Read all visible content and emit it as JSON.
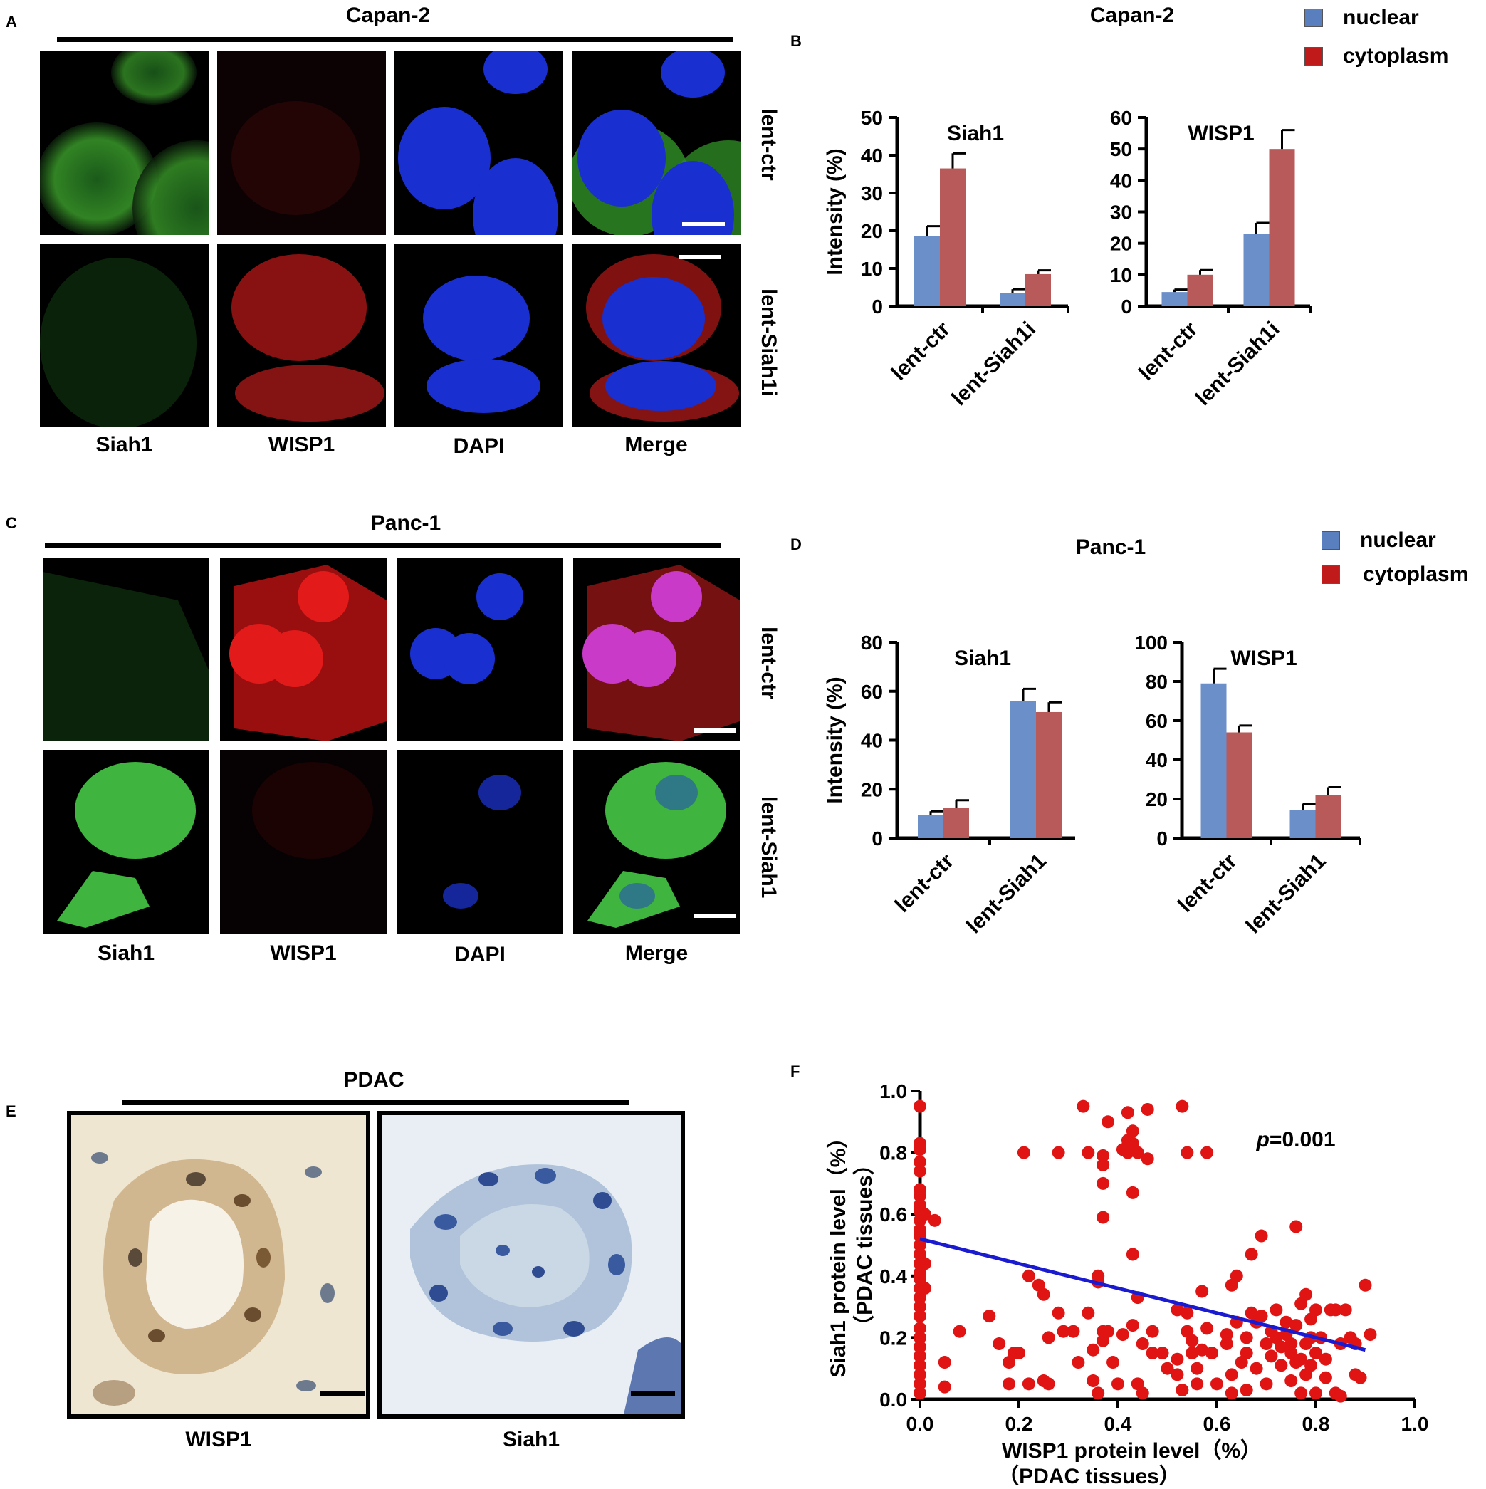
{
  "panels": {
    "A": {
      "letter": "A",
      "title": "Capan-2",
      "columns": [
        "Siah1",
        "WISP1",
        "DAPI",
        "Merge"
      ],
      "rows": [
        "lent-ctr",
        "lent-Siah1i"
      ]
    },
    "B": {
      "letter": "B",
      "title": "Capan-2"
    },
    "C": {
      "letter": "C",
      "title": "Panc-1",
      "columns": [
        "Siah1",
        "WISP1",
        "DAPI",
        "Merge"
      ],
      "rows": [
        "lent-ctr",
        "lent-Siah1"
      ]
    },
    "D": {
      "letter": "D",
      "title": "Panc-1"
    },
    "E": {
      "letter": "E",
      "title": "PDAC",
      "labels": [
        "WISP1",
        "Siah1"
      ]
    },
    "F": {
      "letter": "F"
    }
  },
  "legend": {
    "items": [
      {
        "label": "nuclear",
        "color": "#5a7fbf"
      },
      {
        "label": "cytoplasm",
        "color": "#c01a1a"
      }
    ]
  },
  "chart_data": [
    {
      "id": "B-siah1",
      "type": "bar",
      "title": "Siah1",
      "ylabel": "Intensity (%)",
      "categories": [
        "lent-ctr",
        "lent-Siah1i"
      ],
      "ylim": [
        0,
        50
      ],
      "yticks": [
        0,
        10,
        20,
        30,
        40,
        50
      ],
      "series": [
        {
          "name": "nuclear",
          "values": [
            18.5,
            3.5
          ],
          "errors": [
            2.7,
            1.0
          ]
        },
        {
          "name": "cytoplasm",
          "values": [
            36.5,
            8.5
          ],
          "errors": [
            4.0,
            1.0
          ]
        }
      ]
    },
    {
      "id": "B-wisp1",
      "type": "bar",
      "title": "WISP1",
      "ylabel": "",
      "categories": [
        "lent-ctr",
        "lent-Siah1i"
      ],
      "ylim": [
        0,
        60
      ],
      "yticks": [
        0,
        10,
        20,
        30,
        40,
        50,
        60
      ],
      "series": [
        {
          "name": "nuclear",
          "values": [
            4.5,
            23
          ],
          "errors": [
            0.8,
            3.5
          ]
        },
        {
          "name": "cytoplasm",
          "values": [
            10,
            50
          ],
          "errors": [
            1.5,
            6.0
          ]
        }
      ]
    },
    {
      "id": "D-siah1",
      "type": "bar",
      "title": "Siah1",
      "ylabel": "Intensity (%)",
      "categories": [
        "lent-ctr",
        "lent-Siah1"
      ],
      "ylim": [
        0,
        80
      ],
      "yticks": [
        0,
        20,
        40,
        60,
        80
      ],
      "series": [
        {
          "name": "nuclear",
          "values": [
            9.5,
            56
          ],
          "errors": [
            1.5,
            5.0
          ]
        },
        {
          "name": "cytoplasm",
          "values": [
            12.5,
            51.5
          ],
          "errors": [
            3.0,
            4.0
          ]
        }
      ]
    },
    {
      "id": "D-wisp1",
      "type": "bar",
      "title": "WISP1",
      "ylabel": "",
      "categories": [
        "lent-ctr",
        "lent-Siah1"
      ],
      "ylim": [
        0,
        100
      ],
      "yticks": [
        0,
        20,
        40,
        60,
        80,
        100
      ],
      "series": [
        {
          "name": "nuclear",
          "values": [
            79,
            14.5
          ],
          "errors": [
            7.5,
            3.0
          ]
        },
        {
          "name": "cytoplasm",
          "values": [
            54,
            22
          ],
          "errors": [
            3.5,
            4.0
          ]
        }
      ]
    },
    {
      "id": "F-scatter",
      "type": "scatter",
      "xlabel": "WISP1 protein level（%）",
      "xlabel2": "（PDAC tissues）",
      "ylabel": "Siah1 protein level（%）",
      "ylabel2": "（PDAC tissues）",
      "xlim": [
        0,
        1
      ],
      "ylim": [
        0,
        1
      ],
      "xticks": [
        "0.0",
        "0.2",
        "0.4",
        "0.6",
        "0.8",
        "1.0"
      ],
      "yticks": [
        "0.0",
        "0.2",
        "0.4",
        "0.6",
        "0.8",
        "1.0"
      ],
      "annotation": {
        "p_label": "p",
        "p_value": "=0.001"
      },
      "regression": {
        "x0": 0.0,
        "y0": 0.52,
        "x1": 0.9,
        "y1": 0.16
      },
      "points": [
        [
          0.0,
          0.95
        ],
        [
          0.0,
          0.83
        ],
        [
          0.0,
          0.81
        ],
        [
          0.0,
          0.77
        ],
        [
          0.0,
          0.74
        ],
        [
          0.0,
          0.68
        ],
        [
          0.0,
          0.66
        ],
        [
          0.0,
          0.63
        ],
        [
          0.0,
          0.61
        ],
        [
          0.0,
          0.58
        ],
        [
          0.0,
          0.55
        ],
        [
          0.0,
          0.53
        ],
        [
          0.0,
          0.5
        ],
        [
          0.0,
          0.47
        ],
        [
          0.0,
          0.44
        ],
        [
          0.0,
          0.41
        ],
        [
          0.0,
          0.39
        ],
        [
          0.0,
          0.36
        ],
        [
          0.0,
          0.33
        ],
        [
          0.0,
          0.3
        ],
        [
          0.0,
          0.27
        ],
        [
          0.0,
          0.23
        ],
        [
          0.0,
          0.2
        ],
        [
          0.0,
          0.17
        ],
        [
          0.0,
          0.14
        ],
        [
          0.0,
          0.11
        ],
        [
          0.0,
          0.08
        ],
        [
          0.0,
          0.05
        ],
        [
          0.0,
          0.02
        ],
        [
          0.01,
          0.44
        ],
        [
          0.01,
          0.6
        ],
        [
          0.01,
          0.36
        ],
        [
          0.03,
          0.58
        ],
        [
          0.05,
          0.12
        ],
        [
          0.05,
          0.04
        ],
        [
          0.08,
          0.22
        ],
        [
          0.14,
          0.27
        ],
        [
          0.16,
          0.18
        ],
        [
          0.18,
          0.12
        ],
        [
          0.18,
          0.05
        ],
        [
          0.19,
          0.15
        ],
        [
          0.2,
          0.15
        ],
        [
          0.21,
          0.8
        ],
        [
          0.22,
          0.4
        ],
        [
          0.22,
          0.05
        ],
        [
          0.24,
          0.37
        ],
        [
          0.25,
          0.34
        ],
        [
          0.25,
          0.06
        ],
        [
          0.26,
          0.05
        ],
        [
          0.26,
          0.2
        ],
        [
          0.28,
          0.8
        ],
        [
          0.28,
          0.28
        ],
        [
          0.29,
          0.22
        ],
        [
          0.31,
          0.22
        ],
        [
          0.32,
          0.12
        ],
        [
          0.33,
          0.95
        ],
        [
          0.34,
          0.8
        ],
        [
          0.34,
          0.28
        ],
        [
          0.35,
          0.16
        ],
        [
          0.35,
          0.06
        ],
        [
          0.36,
          0.38
        ],
        [
          0.36,
          0.4
        ],
        [
          0.36,
          0.02
        ],
        [
          0.37,
          0.79
        ],
        [
          0.37,
          0.76
        ],
        [
          0.37,
          0.7
        ],
        [
          0.37,
          0.59
        ],
        [
          0.37,
          0.22
        ],
        [
          0.37,
          0.19
        ],
        [
          0.38,
          0.9
        ],
        [
          0.38,
          0.22
        ],
        [
          0.39,
          0.12
        ],
        [
          0.4,
          0.05
        ],
        [
          0.41,
          0.21
        ],
        [
          0.41,
          0.81
        ],
        [
          0.42,
          0.8
        ],
        [
          0.42,
          0.84
        ],
        [
          0.42,
          0.93
        ],
        [
          0.43,
          0.87
        ],
        [
          0.43,
          0.83
        ],
        [
          0.43,
          0.67
        ],
        [
          0.43,
          0.47
        ],
        [
          0.43,
          0.24
        ],
        [
          0.44,
          0.05
        ],
        [
          0.44,
          0.33
        ],
        [
          0.44,
          0.8
        ],
        [
          0.45,
          0.02
        ],
        [
          0.45,
          0.18
        ],
        [
          0.46,
          0.94
        ],
        [
          0.46,
          0.78
        ],
        [
          0.47,
          0.22
        ],
        [
          0.47,
          0.15
        ],
        [
          0.49,
          0.15
        ],
        [
          0.5,
          0.1
        ],
        [
          0.52,
          0.29
        ],
        [
          0.52,
          0.13
        ],
        [
          0.52,
          0.08
        ],
        [
          0.53,
          0.03
        ],
        [
          0.53,
          0.95
        ],
        [
          0.54,
          0.8
        ],
        [
          0.54,
          0.28
        ],
        [
          0.54,
          0.22
        ],
        [
          0.55,
          0.19
        ],
        [
          0.55,
          0.15
        ],
        [
          0.56,
          0.1
        ],
        [
          0.56,
          0.05
        ],
        [
          0.57,
          0.35
        ],
        [
          0.57,
          0.16
        ],
        [
          0.58,
          0.8
        ],
        [
          0.58,
          0.23
        ],
        [
          0.59,
          0.15
        ],
        [
          0.6,
          0.05
        ],
        [
          0.62,
          0.21
        ],
        [
          0.62,
          0.18
        ],
        [
          0.63,
          0.08
        ],
        [
          0.63,
          0.02
        ],
        [
          0.63,
          0.37
        ],
        [
          0.64,
          0.4
        ],
        [
          0.64,
          0.25
        ],
        [
          0.65,
          0.12
        ],
        [
          0.66,
          0.15
        ],
        [
          0.66,
          0.03
        ],
        [
          0.66,
          0.2
        ],
        [
          0.67,
          0.47
        ],
        [
          0.67,
          0.28
        ],
        [
          0.68,
          0.25
        ],
        [
          0.68,
          0.1
        ],
        [
          0.69,
          0.53
        ],
        [
          0.69,
          0.27
        ],
        [
          0.7,
          0.18
        ],
        [
          0.7,
          0.05
        ],
        [
          0.71,
          0.22
        ],
        [
          0.71,
          0.14
        ],
        [
          0.72,
          0.29
        ],
        [
          0.72,
          0.2
        ],
        [
          0.73,
          0.11
        ],
        [
          0.73,
          0.17
        ],
        [
          0.74,
          0.25
        ],
        [
          0.74,
          0.21
        ],
        [
          0.75,
          0.15
        ],
        [
          0.75,
          0.06
        ],
        [
          0.75,
          0.18
        ],
        [
          0.76,
          0.56
        ],
        [
          0.76,
          0.12
        ],
        [
          0.76,
          0.24
        ],
        [
          0.77,
          0.02
        ],
        [
          0.77,
          0.13
        ],
        [
          0.77,
          0.31
        ],
        [
          0.78,
          0.18
        ],
        [
          0.78,
          0.34
        ],
        [
          0.78,
          0.08
        ],
        [
          0.79,
          0.2
        ],
        [
          0.79,
          0.11
        ],
        [
          0.79,
          0.26
        ],
        [
          0.8,
          0.15
        ],
        [
          0.8,
          0.29
        ],
        [
          0.8,
          0.02
        ],
        [
          0.81,
          0.2
        ],
        [
          0.82,
          0.07
        ],
        [
          0.82,
          0.13
        ],
        [
          0.83,
          0.29
        ],
        [
          0.84,
          0.29
        ],
        [
          0.84,
          0.02
        ],
        [
          0.85,
          0.18
        ],
        [
          0.85,
          0.01
        ],
        [
          0.86,
          0.29
        ],
        [
          0.87,
          0.2
        ],
        [
          0.88,
          0.08
        ],
        [
          0.88,
          0.18
        ],
        [
          0.89,
          0.07
        ],
        [
          0.9,
          0.37
        ],
        [
          0.91,
          0.21
        ]
      ]
    }
  ]
}
